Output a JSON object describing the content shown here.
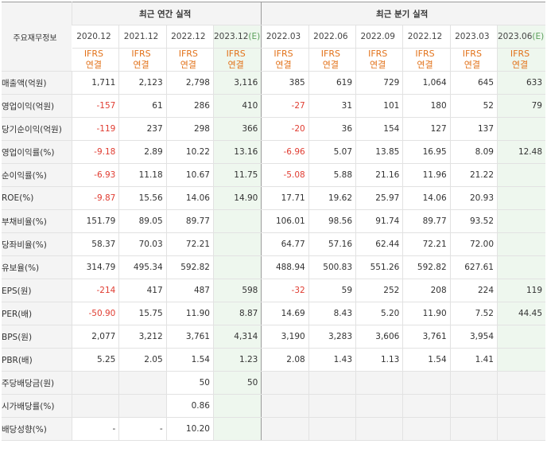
{
  "header": {
    "corner_label": "주요재무정보",
    "annual_group": "최근 연간 실적",
    "quarter_group": "최근 분기 실적"
  },
  "periods": [
    {
      "label": "2020.12",
      "est": ""
    },
    {
      "label": "2021.12",
      "est": ""
    },
    {
      "label": "2022.12",
      "est": ""
    },
    {
      "label": "2023.12",
      "est": "(E)"
    },
    {
      "label": "2022.03",
      "est": ""
    },
    {
      "label": "2022.06",
      "est": ""
    },
    {
      "label": "2022.09",
      "est": ""
    },
    {
      "label": "2022.12",
      "est": ""
    },
    {
      "label": "2023.03",
      "est": ""
    },
    {
      "label": "2023.06",
      "est": "(E)"
    }
  ],
  "ifrs": {
    "line1": "IFRS",
    "line2": "연결"
  },
  "rows": [
    {
      "label": "매출액(억원)",
      "values": [
        "1,711",
        "2,123",
        "2,798",
        "3,116",
        "385",
        "619",
        "729",
        "1,064",
        "645",
        "633"
      ]
    },
    {
      "label": "영업이익(억원)",
      "values": [
        "-157",
        "61",
        "286",
        "410",
        "-27",
        "31",
        "101",
        "180",
        "52",
        "79"
      ]
    },
    {
      "label": "당기순이익(억원)",
      "values": [
        "-119",
        "237",
        "298",
        "366",
        "-20",
        "36",
        "154",
        "127",
        "137",
        ""
      ]
    },
    {
      "label": "영업이익률(%)",
      "values": [
        "-9.18",
        "2.89",
        "10.22",
        "13.16",
        "-6.96",
        "5.07",
        "13.85",
        "16.95",
        "8.09",
        "12.48"
      ]
    },
    {
      "label": "순이익률(%)",
      "values": [
        "-6.93",
        "11.18",
        "10.67",
        "11.75",
        "-5.08",
        "5.88",
        "21.16",
        "11.96",
        "21.22",
        ""
      ]
    },
    {
      "label": "ROE(%)",
      "values": [
        "-9.87",
        "15.56",
        "14.06",
        "14.90",
        "17.71",
        "19.62",
        "25.97",
        "14.06",
        "20.93",
        ""
      ]
    },
    {
      "label": "부채비율(%)",
      "values": [
        "151.79",
        "89.05",
        "89.77",
        "",
        "106.01",
        "98.56",
        "91.74",
        "89.77",
        "93.52",
        ""
      ]
    },
    {
      "label": "당좌비율(%)",
      "values": [
        "58.37",
        "70.03",
        "72.21",
        "",
        "64.77",
        "57.16",
        "62.44",
        "72.21",
        "72.00",
        ""
      ]
    },
    {
      "label": "유보율(%)",
      "values": [
        "314.79",
        "495.34",
        "592.82",
        "",
        "488.94",
        "500.83",
        "551.26",
        "592.82",
        "627.61",
        ""
      ]
    },
    {
      "label": "EPS(원)",
      "values": [
        "-214",
        "417",
        "487",
        "598",
        "-32",
        "59",
        "252",
        "208",
        "224",
        "119"
      ]
    },
    {
      "label": "PER(배)",
      "values": [
        "-50.90",
        "15.75",
        "11.90",
        "8.87",
        "14.69",
        "8.43",
        "5.20",
        "11.90",
        "7.52",
        "44.45"
      ]
    },
    {
      "label": "BPS(원)",
      "values": [
        "2,077",
        "3,212",
        "3,761",
        "4,314",
        "3,190",
        "3,283",
        "3,606",
        "3,761",
        "3,954",
        ""
      ]
    },
    {
      "label": "PBR(배)",
      "values": [
        "5.25",
        "2.05",
        "1.54",
        "1.23",
        "2.08",
        "1.43",
        "1.13",
        "1.54",
        "1.41",
        ""
      ]
    },
    {
      "label": "주당배당금(원)",
      "values": [
        "",
        "",
        "50",
        "50",
        "",
        "",
        "",
        "",
        "",
        ""
      ]
    },
    {
      "label": "시가배당률(%)",
      "values": [
        "",
        "",
        "0.86",
        "",
        "",
        "",
        "",
        "",
        "",
        ""
      ]
    },
    {
      "label": "배당성향(%)",
      "values": [
        "-",
        "-",
        "10.20",
        "",
        "",
        "",
        "",
        "",
        "",
        ""
      ]
    }
  ],
  "colors": {
    "negative": "#e03c31",
    "estimate_bg": "#eef7ee",
    "ifrs_text": "#e2721a",
    "header_bg": "#f4f4f4"
  }
}
